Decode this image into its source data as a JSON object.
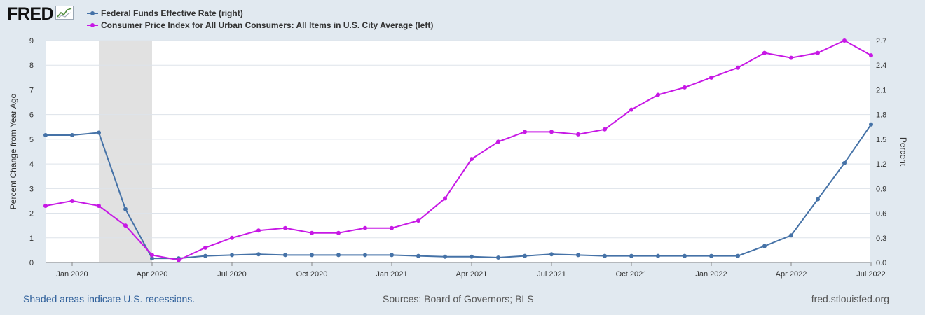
{
  "header": {
    "logo_text": "FRED",
    "logo_icon": "line-graph-icon"
  },
  "footer": {
    "recession_note": "Shaded areas indicate U.S. recessions.",
    "sources": "Sources: Board of Governors; BLS",
    "site": "fred.stlouisfed.org"
  },
  "colors": {
    "background": "#e1e9f0",
    "plot": "#ffffff",
    "fedfunds": "#4572a7",
    "cpi": "#c718e5",
    "recession": "#e1e1e1",
    "grid": "#dde3ea"
  },
  "chart_data": {
    "type": "line",
    "x_start": "Dec 2019",
    "x": [
      "Dec 2019",
      "Jan 2020",
      "Feb 2020",
      "Mar 2020",
      "Apr 2020",
      "May 2020",
      "Jun 2020",
      "Jul 2020",
      "Aug 2020",
      "Sep 2020",
      "Oct 2020",
      "Nov 2020",
      "Dec 2020",
      "Jan 2021",
      "Feb 2021",
      "Mar 2021",
      "Apr 2021",
      "May 2021",
      "Jun 2021",
      "Jul 2021",
      "Aug 2021",
      "Sep 2021",
      "Oct 2021",
      "Nov 2021",
      "Dec 2021",
      "Jan 2022",
      "Feb 2022",
      "Mar 2022",
      "Apr 2022",
      "May 2022",
      "Jun 2022",
      "Jul 2022"
    ],
    "series": [
      {
        "name": "Federal Funds Effective Rate (right)",
        "axis": "right",
        "color": "#4572a7",
        "values": [
          1.55,
          1.55,
          1.58,
          0.65,
          0.05,
          0.05,
          0.08,
          0.09,
          0.1,
          0.09,
          0.09,
          0.09,
          0.09,
          0.09,
          0.08,
          0.07,
          0.07,
          0.06,
          0.08,
          0.1,
          0.09,
          0.08,
          0.08,
          0.08,
          0.08,
          0.08,
          0.08,
          0.2,
          0.33,
          0.77,
          1.21,
          1.68
        ]
      },
      {
        "name": "Consumer Price Index for All Urban Consumers: All Items in U.S. City Average (left)",
        "axis": "left",
        "color": "#c718e5",
        "values": [
          2.3,
          2.5,
          2.3,
          1.5,
          0.3,
          0.1,
          0.6,
          1.0,
          1.3,
          1.4,
          1.2,
          1.2,
          1.4,
          1.4,
          1.7,
          2.6,
          4.2,
          4.9,
          5.3,
          5.3,
          5.2,
          5.4,
          6.2,
          6.8,
          7.1,
          7.5,
          7.9,
          8.5,
          8.3,
          8.5,
          9.0,
          8.4
        ]
      }
    ],
    "x_tick_labels": [
      "Jan 2020",
      "Apr 2020",
      "Jul 2020",
      "Oct 2020",
      "Jan 2021",
      "Apr 2021",
      "Jul 2021",
      "Oct 2021",
      "Jan 2022",
      "Apr 2022",
      "Jul 2022"
    ],
    "x_tick_index": [
      1,
      4,
      7,
      10,
      13,
      16,
      19,
      22,
      25,
      28,
      31
    ],
    "left_axis": {
      "label": "Percent Change from Year Ago",
      "ticks": [
        "0",
        "1",
        "2",
        "3",
        "4",
        "5",
        "6",
        "7",
        "8",
        "9"
      ],
      "ylim": [
        0,
        9
      ]
    },
    "right_axis": {
      "label": "Percent",
      "ticks": [
        "0.0",
        "0.3",
        "0.6",
        "0.9",
        "1.2",
        "1.5",
        "1.8",
        "2.1",
        "2.4",
        "2.7"
      ],
      "ylim": [
        0,
        2.7
      ]
    },
    "recession": {
      "start": "Feb 2020",
      "end": "Apr 2020"
    },
    "grid": true,
    "legend_position": "top-left"
  }
}
